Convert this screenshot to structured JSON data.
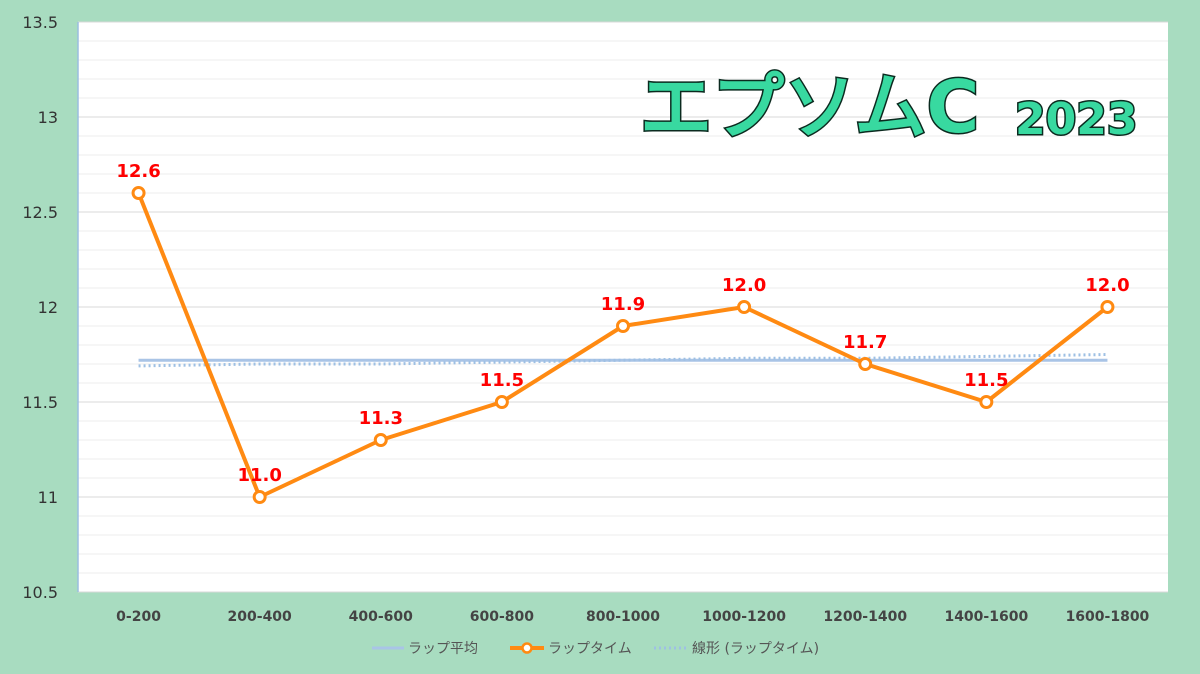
{
  "chart_data": {
    "type": "line",
    "title": "エプソムC",
    "title_year": "2023",
    "categories": [
      "0-200",
      "200-400",
      "400-600",
      "600-800",
      "800-1000",
      "1000-1200",
      "1200-1400",
      "1400-1600",
      "1600-1800"
    ],
    "series": [
      {
        "name": "ラップ平均",
        "values": [
          11.72,
          11.72,
          11.72,
          11.72,
          11.72,
          11.72,
          11.72,
          11.72,
          11.72
        ],
        "color": "#a9c4e6",
        "style": "solid"
      },
      {
        "name": "ラップタイム",
        "values": [
          12.6,
          11.0,
          11.3,
          11.5,
          11.9,
          12.0,
          11.7,
          11.5,
          12.0
        ],
        "data_labels": [
          "12.6",
          "11.0",
          "11.3",
          "11.5",
          "11.9",
          "12.0",
          "11.7",
          "11.5",
          "12.0"
        ],
        "color": "#ff8a12",
        "style": "solid-markers"
      },
      {
        "name": "線形 (ラップタイム)",
        "values": [
          11.69,
          11.7,
          11.7,
          11.71,
          11.72,
          11.73,
          11.73,
          11.74,
          11.75
        ],
        "color": "#9ec0e4",
        "style": "dotted"
      }
    ],
    "y_ticks": [
      "10.5",
      "11",
      "11.5",
      "12",
      "12.5",
      "13",
      "13.5"
    ],
    "ylim": [
      10.5,
      13.5
    ],
    "grid": true,
    "legend_position": "bottom"
  }
}
